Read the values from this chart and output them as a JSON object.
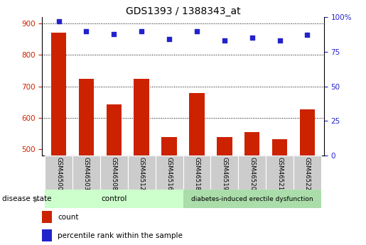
{
  "title": "GDS1393 / 1388343_at",
  "samples": [
    "GSM46500",
    "GSM46503",
    "GSM46508",
    "GSM46512",
    "GSM46516",
    "GSM46518",
    "GSM46519",
    "GSM46520",
    "GSM46521",
    "GSM46522"
  ],
  "counts": [
    870,
    725,
    643,
    724,
    538,
    678,
    539,
    554,
    532,
    628
  ],
  "percentiles": [
    97,
    90,
    88,
    90,
    84,
    90,
    83,
    85,
    83,
    87
  ],
  "groups": [
    "control",
    "control",
    "control",
    "control",
    "control",
    "diabetes-induced erectile dysfunction",
    "diabetes-induced erectile dysfunction",
    "diabetes-induced erectile dysfunction",
    "diabetes-induced erectile dysfunction",
    "diabetes-induced erectile dysfunction"
  ],
  "ylim_left": [
    480,
    920
  ],
  "ylim_right": [
    0,
    100
  ],
  "yticks_left": [
    500,
    600,
    700,
    800,
    900
  ],
  "yticks_right": [
    0,
    25,
    50,
    75,
    100
  ],
  "bar_color": "#cc2200",
  "dot_color": "#2222cc",
  "grid_color": "#000000",
  "control_color": "#ccffcc",
  "disease_color": "#aaddaa",
  "tick_bg_color": "#cccccc",
  "legend_bar_label": "count",
  "legend_dot_label": "percentile rank within the sample",
  "disease_state_label": "disease state"
}
